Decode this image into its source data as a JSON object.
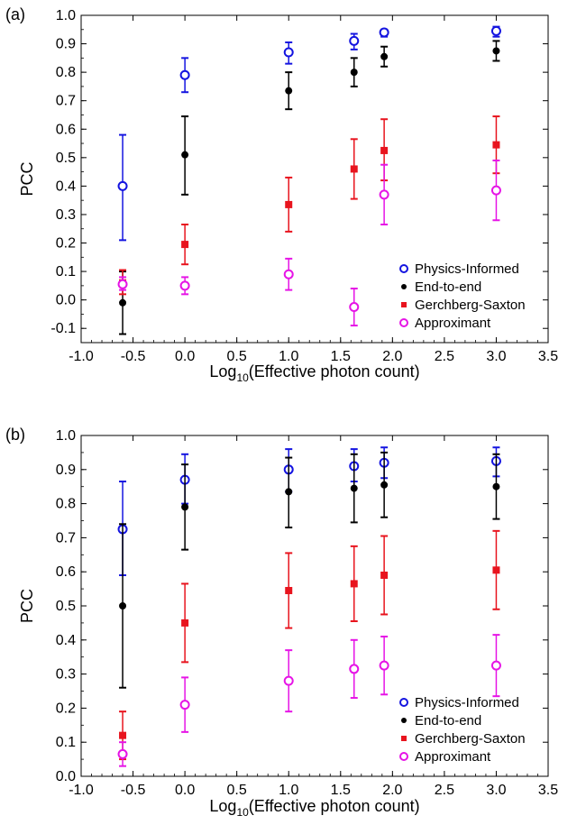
{
  "colors": {
    "physics": "#1414e0",
    "end_to_end": "#000000",
    "gerchberg": "#e8141e",
    "approximant": "#e614e6"
  },
  "chart_data": [
    {
      "type": "scatter",
      "panel_label": "(a)",
      "xlabel_prefix": "Log",
      "xlabel_sub": "10",
      "xlabel_rest": "(Effective photon count)",
      "ylabel": "PCC",
      "xlim": [
        -1.0,
        3.5
      ],
      "ylim": [
        -0.15,
        1.0
      ],
      "x_ticks": [
        "-1.0",
        "-0.5",
        "0.0",
        "0.5",
        "1.0",
        "1.5",
        "2.0",
        "2.5",
        "3.0",
        "3.5"
      ],
      "y_ticks": [
        "-0.1",
        "0.0",
        "0.1",
        "0.2",
        "0.3",
        "0.4",
        "0.5",
        "0.6",
        "0.7",
        "0.8",
        "0.9",
        "1.0"
      ],
      "legend_position": "bottom-right",
      "series": [
        {
          "name": "Physics-Informed",
          "marker": "circle-open",
          "color_key": "physics",
          "x": [
            -0.6,
            0.0,
            1.0,
            1.63,
            1.92,
            3.0
          ],
          "y": [
            0.4,
            0.79,
            0.87,
            0.91,
            0.94,
            0.945
          ],
          "lo": [
            0.21,
            0.73,
            0.83,
            0.88,
            0.925,
            0.925
          ],
          "hi": [
            0.58,
            0.85,
            0.905,
            0.935,
            0.95,
            0.96
          ]
        },
        {
          "name": "End-to-end",
          "marker": "dot",
          "color_key": "end_to_end",
          "x": [
            -0.6,
            0.0,
            1.0,
            1.63,
            1.92,
            3.0
          ],
          "y": [
            -0.01,
            0.51,
            0.735,
            0.8,
            0.855,
            0.875
          ],
          "lo": [
            -0.12,
            0.37,
            0.67,
            0.75,
            0.82,
            0.84
          ],
          "hi": [
            0.1,
            0.645,
            0.8,
            0.85,
            0.89,
            0.91
          ]
        },
        {
          "name": "Gerchberg-Saxton",
          "marker": "square",
          "color_key": "gerchberg",
          "x": [
            -0.6,
            0.0,
            1.0,
            1.63,
            1.92,
            3.0
          ],
          "y": [
            0.06,
            0.195,
            0.335,
            0.46,
            0.525,
            0.545
          ],
          "lo": [
            0.02,
            0.125,
            0.24,
            0.355,
            0.42,
            0.445
          ],
          "hi": [
            0.105,
            0.265,
            0.43,
            0.565,
            0.635,
            0.645
          ]
        },
        {
          "name": "Approximant",
          "marker": "circle-open",
          "color_key": "approximant",
          "x": [
            -0.6,
            0.0,
            1.0,
            1.63,
            1.92,
            3.0
          ],
          "y": [
            0.055,
            0.05,
            0.09,
            -0.025,
            0.37,
            0.385
          ],
          "lo": [
            0.035,
            0.02,
            0.035,
            -0.09,
            0.265,
            0.28
          ],
          "hi": [
            0.08,
            0.08,
            0.145,
            0.04,
            0.475,
            0.49
          ]
        }
      ]
    },
    {
      "type": "scatter",
      "panel_label": "(b)",
      "xlabel_prefix": "Log",
      "xlabel_sub": "10",
      "xlabel_rest": "(Effective photon count)",
      "ylabel": "PCC",
      "xlim": [
        -1.0,
        3.5
      ],
      "ylim": [
        0.0,
        1.0
      ],
      "x_ticks": [
        "-1.0",
        "-0.5",
        "0.0",
        "0.5",
        "1.0",
        "1.5",
        "2.0",
        "2.5",
        "3.0",
        "3.5"
      ],
      "y_ticks": [
        "0.0",
        "0.1",
        "0.2",
        "0.3",
        "0.4",
        "0.5",
        "0.6",
        "0.7",
        "0.8",
        "0.9",
        "1.0"
      ],
      "legend_position": "bottom-right",
      "series": [
        {
          "name": "Physics-Informed",
          "marker": "circle-open",
          "color_key": "physics",
          "x": [
            -0.6,
            0.0,
            1.0,
            1.63,
            1.92,
            3.0
          ],
          "y": [
            0.725,
            0.87,
            0.9,
            0.91,
            0.92,
            0.925
          ],
          "lo": [
            0.59,
            0.8,
            0.835,
            0.865,
            0.875,
            0.88
          ],
          "hi": [
            0.865,
            0.945,
            0.96,
            0.96,
            0.965,
            0.965
          ]
        },
        {
          "name": "End-to-end",
          "marker": "dot",
          "color_key": "end_to_end",
          "x": [
            -0.6,
            0.0,
            1.0,
            1.63,
            1.92,
            3.0
          ],
          "y": [
            0.5,
            0.79,
            0.835,
            0.845,
            0.855,
            0.85
          ],
          "lo": [
            0.26,
            0.665,
            0.73,
            0.745,
            0.76,
            0.755
          ],
          "hi": [
            0.74,
            0.915,
            0.935,
            0.945,
            0.95,
            0.945
          ]
        },
        {
          "name": "Gerchberg-Saxton",
          "marker": "square",
          "color_key": "gerchberg",
          "x": [
            -0.6,
            0.0,
            1.0,
            1.63,
            1.92,
            3.0
          ],
          "y": [
            0.12,
            0.45,
            0.545,
            0.565,
            0.59,
            0.605
          ],
          "lo": [
            0.05,
            0.335,
            0.435,
            0.455,
            0.475,
            0.49
          ],
          "hi": [
            0.19,
            0.565,
            0.655,
            0.675,
            0.705,
            0.72
          ]
        },
        {
          "name": "Approximant",
          "marker": "circle-open",
          "color_key": "approximant",
          "x": [
            -0.6,
            0.0,
            1.0,
            1.63,
            1.92,
            3.0
          ],
          "y": [
            0.065,
            0.21,
            0.28,
            0.315,
            0.325,
            0.325
          ],
          "lo": [
            0.03,
            0.13,
            0.19,
            0.23,
            0.24,
            0.235
          ],
          "hi": [
            0.1,
            0.29,
            0.37,
            0.4,
            0.41,
            0.415
          ]
        }
      ]
    }
  ]
}
